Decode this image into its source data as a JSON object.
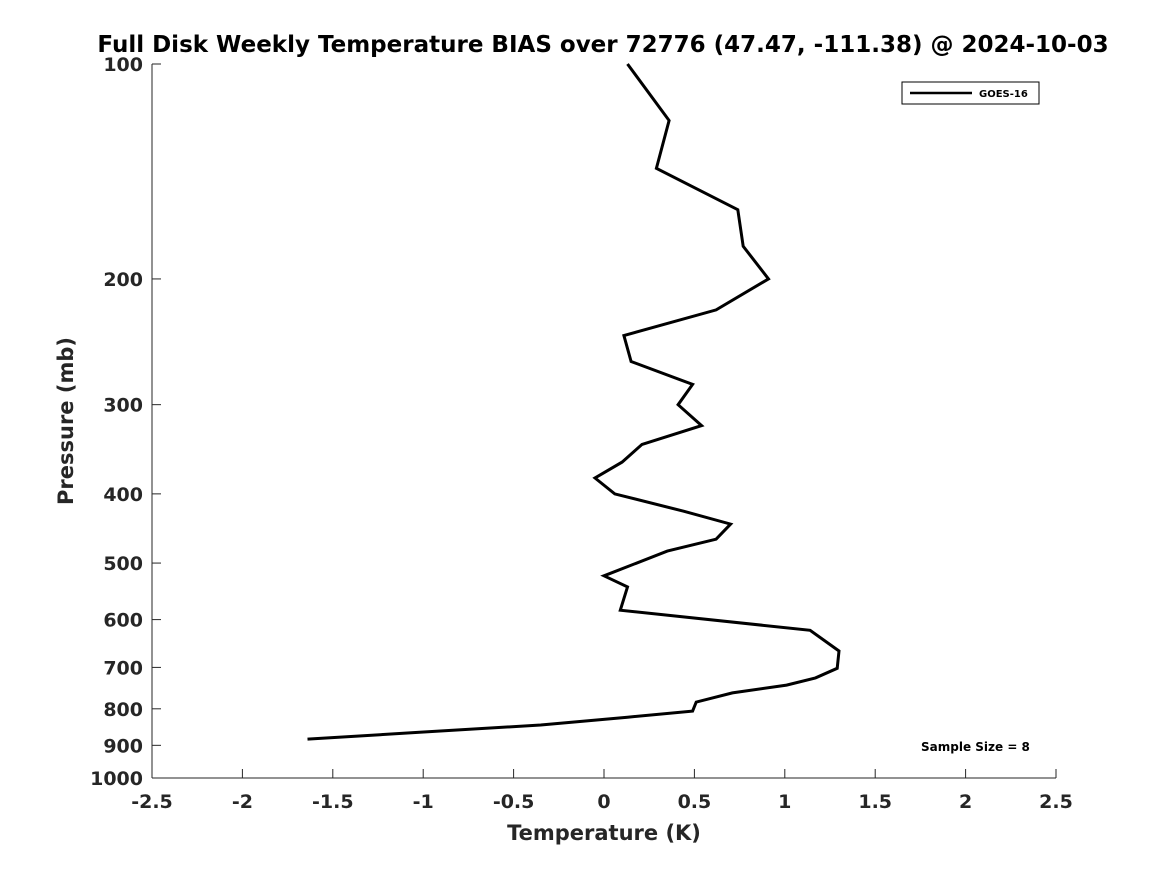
{
  "chart_data": {
    "type": "line",
    "title": "Full Disk Weekly Temperature BIAS over 72776 (47.47, -111.38) @ 2024-10-03",
    "xlabel": "Temperature (K)",
    "ylabel": "Pressure (mb)",
    "xlim": [
      -2.5,
      2.5
    ],
    "ylim": [
      100,
      1000
    ],
    "yscale": "log",
    "y_reversed": true,
    "xticks": [
      -2.5,
      -2,
      -1.5,
      -1,
      -0.5,
      0,
      0.5,
      1,
      1.5,
      2,
      2.5
    ],
    "xtick_labels": [
      "-2.5",
      "-2",
      "-1.5",
      "-1",
      "-0.5",
      "0",
      "0.5",
      "1",
      "1.5",
      "2",
      "2.5"
    ],
    "yticks": [
      100,
      200,
      300,
      400,
      500,
      600,
      700,
      800,
      900,
      1000
    ],
    "ytick_labels": [
      "100",
      "200",
      "300",
      "400",
      "500",
      "600",
      "700",
      "800",
      "900",
      "1000"
    ],
    "grid": false,
    "legend_position": "top-right",
    "annotation": "Sample Size = 8",
    "series": [
      {
        "name": "GOES-16",
        "color": "#000000",
        "x": [
          0.13,
          0.36,
          0.29,
          0.74,
          0.77,
          0.91,
          0.62,
          0.11,
          0.15,
          0.49,
          0.41,
          0.54,
          0.21,
          0.1,
          -0.05,
          0.06,
          0.44,
          0.7,
          0.62,
          0.35,
          0.0,
          0.13,
          0.09,
          1.14,
          1.3,
          1.29,
          1.17,
          1.01,
          0.71,
          0.51,
          0.49,
          0.13,
          -0.35,
          -1.02,
          -1.64
        ],
        "y": [
          100,
          120,
          140,
          160,
          180,
          200,
          221,
          240,
          261,
          281,
          300,
          321,
          341,
          361,
          380,
          400,
          423,
          441,
          463,
          481,
          521,
          540,
          582,
          621,
          664,
          702,
          724,
          741,
          760,
          783,
          806,
          822,
          843,
          863,
          882
        ]
      }
    ]
  }
}
